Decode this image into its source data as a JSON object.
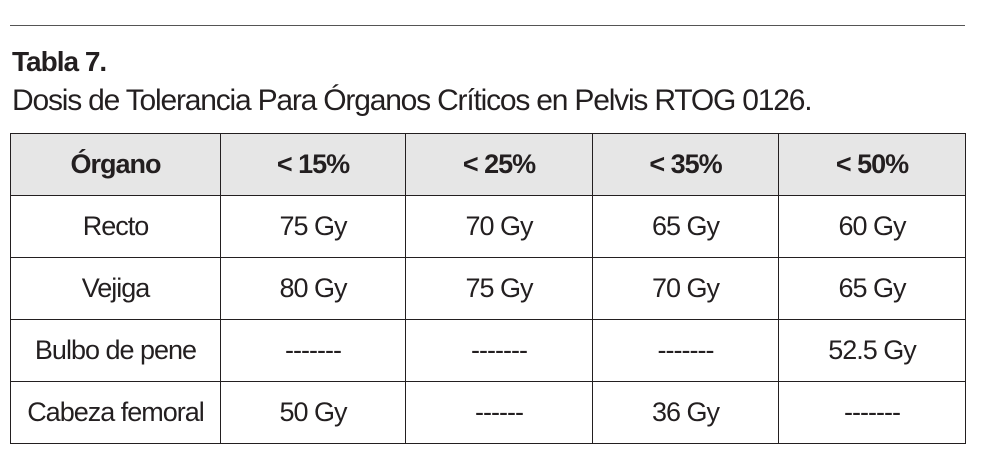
{
  "header": {
    "title": "Tabla 7.",
    "subtitle": "Dosis de Tolerancia Para Órganos Críticos en Pelvis RTOG 0126."
  },
  "table": {
    "columns": [
      "Órgano",
      "< 15%",
      "< 25%",
      "< 35%",
      "< 50%"
    ],
    "rows": [
      [
        "Recto",
        "75 Gy",
        "70 Gy",
        "65 Gy",
        "60 Gy"
      ],
      [
        "Vejiga",
        "80 Gy",
        "75 Gy",
        "70 Gy",
        "65 Gy"
      ],
      [
        "Bulbo de pene",
        "-------",
        "-------",
        "-------",
        "52.5 Gy"
      ],
      [
        "Cabeza femoral",
        "50 Gy",
        "------",
        "36 Gy",
        "-------"
      ]
    ]
  }
}
